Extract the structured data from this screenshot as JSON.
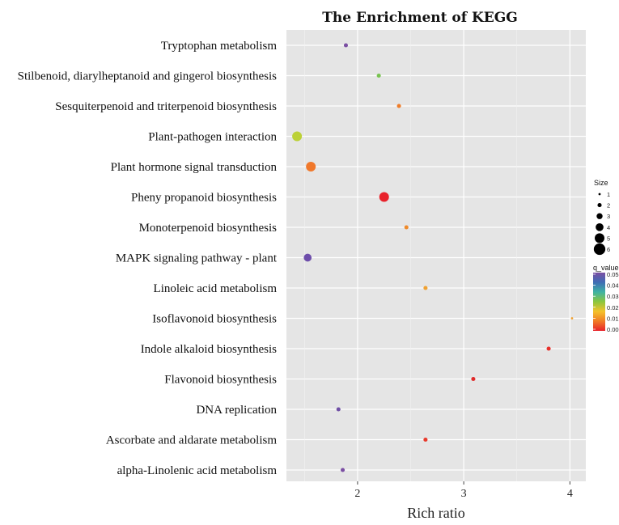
{
  "chart_data": {
    "type": "scatter",
    "title": "The Enrichment of KEGG",
    "xlabel": "Rich ratio",
    "ylabel": "",
    "xlim": [
      1.33,
      4.15
    ],
    "xticks": [
      2,
      3,
      4
    ],
    "grid": true,
    "categories": [
      "Tryptophan metabolism",
      "Stilbenoid, diarylheptanoid and gingerol biosynthesis",
      "Sesquiterpenoid and triterpenoid biosynthesis",
      "Plant-pathogen interaction",
      "Plant hormone signal transduction",
      "Pheny propanoid biosynthesis",
      "Monoterpenoid biosynthesis",
      "MAPK signaling pathway - plant",
      "Linoleic acid metabolism",
      "Isoflavonoid biosynthesis",
      "Indole alkaloid biosynthesis",
      "Flavonoid biosynthesis",
      "DNA replication",
      "Ascorbate and aldarate metabolism",
      "alpha-Linolenic acid metabolism"
    ],
    "points": [
      {
        "category": "Tryptophan metabolism",
        "x": 1.89,
        "size": 2,
        "q_value": 0.05,
        "color": "#7b4fa3"
      },
      {
        "category": "Stilbenoid, diarylheptanoid and gingerol biosynthesis",
        "x": 2.2,
        "size": 2,
        "q_value": 0.026,
        "color": "#78c350"
      },
      {
        "category": "Sesquiterpenoid and triterpenoid biosynthesis",
        "x": 2.39,
        "size": 2,
        "q_value": 0.009,
        "color": "#ef7d2a"
      },
      {
        "category": "Plant-pathogen interaction",
        "x": 1.43,
        "size": 5,
        "q_value": 0.02,
        "color": "#bcd137"
      },
      {
        "category": "Plant hormone signal transduction",
        "x": 1.56,
        "size": 5,
        "q_value": 0.008,
        "color": "#f0782b"
      },
      {
        "category": "Pheny propanoid biosynthesis",
        "x": 2.25,
        "size": 5,
        "q_value": 0.001,
        "color": "#e8222b"
      },
      {
        "category": "Monoterpenoid biosynthesis",
        "x": 2.46,
        "size": 2,
        "q_value": 0.01,
        "color": "#ef8a2a"
      },
      {
        "category": "MAPK signaling pathway - plant",
        "x": 1.53,
        "size": 4,
        "q_value": 0.049,
        "color": "#6e4eab"
      },
      {
        "category": "Linoleic acid metabolism",
        "x": 2.64,
        "size": 2,
        "q_value": 0.012,
        "color": "#efa132"
      },
      {
        "category": "Isoflavonoid biosynthesis",
        "x": 4.02,
        "size": 1,
        "q_value": 0.012,
        "color": "#f0a030"
      },
      {
        "category": "Indole alkaloid biosynthesis",
        "x": 3.8,
        "size": 2,
        "q_value": 0.002,
        "color": "#e8302b"
      },
      {
        "category": "Flavonoid biosynthesis",
        "x": 3.09,
        "size": 2,
        "q_value": 0.002,
        "color": "#e02a2a"
      },
      {
        "category": "DNA replication",
        "x": 1.82,
        "size": 2,
        "q_value": 0.049,
        "color": "#6f4fa5"
      },
      {
        "category": "Ascorbate and aldarate metabolism",
        "x": 2.64,
        "size": 2,
        "q_value": 0.003,
        "color": "#e8392b"
      },
      {
        "category": "alpha-Linolenic acid metabolism",
        "x": 1.86,
        "size": 2,
        "q_value": 0.05,
        "color": "#7b4fa3"
      }
    ],
    "legend": {
      "placement": "right",
      "size_title": "Size",
      "size_values": [
        1,
        2,
        3,
        4,
        5,
        6
      ],
      "color_title": "q_value",
      "color_ticks": [
        "0.05",
        "0.04",
        "0.03",
        "0.02",
        "0.01",
        "0.00"
      ],
      "color_stops": [
        "#7b4fa3",
        "#3f6db5",
        "#3fb3a3",
        "#8cc63e",
        "#f4c22b",
        "#f07c26",
        "#e8222b"
      ]
    }
  }
}
